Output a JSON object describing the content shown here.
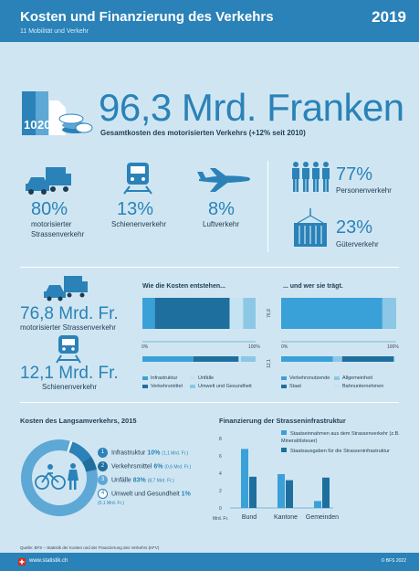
{
  "header": {
    "title": "Kosten und Finanzierung des Verkehrs",
    "subtitle": "11 Mobilität und Verkehr",
    "year": "2019"
  },
  "total": {
    "value": "96,3 Mrd. Franken",
    "description": "Gesamtkosten des motorisierten Verkehrs (+12% seit 2010)",
    "icon_labels": [
      "10",
      "20"
    ]
  },
  "modes": [
    {
      "pct": "80%",
      "label": "motorisierter Strassenverkehr",
      "icon": "car-truck-icon"
    },
    {
      "pct": "13%",
      "label": "Schienenverkehr",
      "icon": "train-icon"
    },
    {
      "pct": "8%",
      "label": "Luftverkehr",
      "icon": "airplane-icon"
    }
  ],
  "transport_type": [
    {
      "pct": "77%",
      "label": "Personenverkehr",
      "icon": "people-icon"
    },
    {
      "pct": "23%",
      "label": "Güterverkehr",
      "icon": "container-icon"
    }
  ],
  "costs": {
    "road": {
      "amount": "76,8 Mrd. Fr.",
      "label": "motorisierter Strassenverkehr",
      "bar_value": "76,8"
    },
    "rail": {
      "amount": "12,1 Mrd. Fr.",
      "label": "Schienenverkehr",
      "bar_value": "12,1"
    },
    "entstehen_title": "Wie die Kosten entstehen...",
    "traegt_title": "... und wer sie trägt.",
    "axis_start": "0%",
    "axis_end": "100%",
    "legend_left": [
      "Infrastruktur",
      "Unfälle",
      "Verkehrsmittel",
      "Umwelt und Gesundheit"
    ],
    "legend_right": [
      "Verkehrsnutzende",
      "Allgemeinheit",
      "Staat",
      "Bahnunternehmen"
    ]
  },
  "chart_data": [
    {
      "type": "bar",
      "title": "Wie die Kosten entstehen...",
      "categories": [
        "motorisierter Strassenverkehr",
        "Schienenverkehr"
      ],
      "series": [
        {
          "name": "Infrastruktur",
          "values": [
            11,
            45
          ]
        },
        {
          "name": "Verkehrsmittel",
          "values": [
            66,
            40
          ]
        },
        {
          "name": "Unfälle",
          "values": [
            12,
            2
          ]
        },
        {
          "name": "Umwelt und Gesundheit",
          "values": [
            11,
            13
          ]
        }
      ],
      "stacked": true,
      "xlim": [
        0,
        100
      ]
    },
    {
      "type": "bar",
      "title": "... und wer sie trägt.",
      "categories": [
        "motorisierter Strassenverkehr",
        "Schienenverkehr"
      ],
      "series": [
        {
          "name": "Verkehrsnutzende",
          "values": [
            88,
            45
          ]
        },
        {
          "name": "Allgemeinheit",
          "values": [
            12,
            8
          ]
        },
        {
          "name": "Staat",
          "values": [
            0,
            45
          ]
        },
        {
          "name": "Bahnunternehmen",
          "values": [
            0,
            2
          ]
        }
      ],
      "stacked": true,
      "xlim": [
        0,
        100
      ]
    },
    {
      "type": "pie",
      "title": "Kosten des Langsamverkehrs, 2015",
      "series": [
        {
          "name": "Infrastruktur",
          "values": [
            10
          ]
        },
        {
          "name": "Verkehrsmittel",
          "values": [
            6
          ]
        },
        {
          "name": "Unfälle",
          "values": [
            83
          ]
        },
        {
          "name": "Umwelt und Gesundheit",
          "values": [
            1
          ]
        }
      ]
    },
    {
      "type": "bar",
      "title": "Finanzierung der Strasseninfrastruktur",
      "categories": [
        "Bund",
        "Kantone",
        "Gemeinden"
      ],
      "ylabel": "Mrd. Fr.",
      "ylim": [
        0,
        8
      ],
      "yticks": [
        "0",
        "2",
        "4",
        "6",
        "8"
      ],
      "series": [
        {
          "name": "Staatseinnahmen aus dem Strassenverkehr (z.B. Mineralölsteuer)",
          "values": [
            6.8,
            3.9,
            0.8
          ]
        },
        {
          "name": "Staatsausgaben für die Strasseninfrastruktur",
          "values": [
            3.6,
            3.2,
            3.5
          ]
        }
      ]
    }
  ],
  "slow": {
    "title": "Kosten des Langsamverkehrs, 2015",
    "items": [
      {
        "num": "1",
        "label": "Infrastruktur",
        "pct": "10%",
        "amount": "(1,1 Mrd. Fr.)"
      },
      {
        "num": "2",
        "label": "Verkehrsmittel",
        "pct": "6%",
        "amount": "(0,6 Mrd. Fr.)"
      },
      {
        "num": "3",
        "label": "Unfälle",
        "pct": "83%",
        "amount": "(8,7 Mrd. Fr.)"
      },
      {
        "num": "4",
        "label": "Umwelt und Gesundheit",
        "pct": "1%",
        "amount": "(0,1 Mrd. Fr.)"
      }
    ]
  },
  "financing": {
    "title": "Finanzierung der Strasseninfrastruktur",
    "legend": [
      "Staatseinnahmen aus dem Strassenverkehr (z.B. Mineralölsteuer)",
      "Staatsausgaben für die Strasseninfrastruktur"
    ],
    "unit": "Mrd. Fr."
  },
  "footer": {
    "source": "Quelle: BFS – Statistik der Kosten und der Finanzierung des Verkehrs (KFV)",
    "url": "www.statistik.ch",
    "copyright": "© BFS 2022"
  },
  "colors": {
    "primary": "#2a82b8",
    "dark": "#1f6f9e",
    "light": "#8cc7e6",
    "pale": "#d6ecf7",
    "background": "#cfe6f2"
  }
}
